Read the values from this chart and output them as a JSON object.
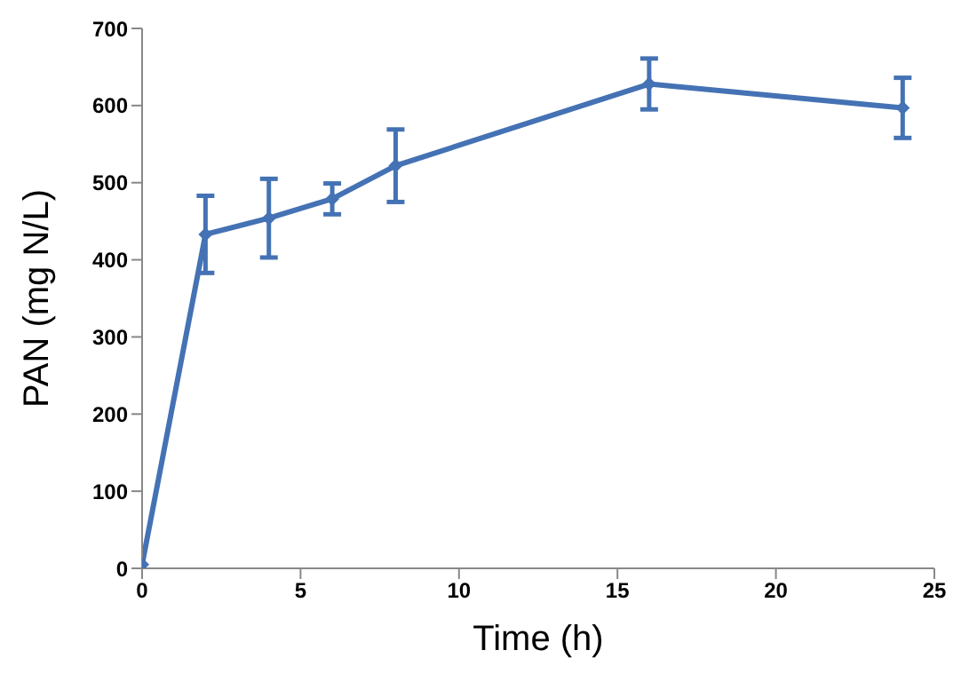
{
  "chart_data": {
    "type": "line",
    "xlabel": "Time (h)",
    "ylabel": "PAN (mg N/L)",
    "x": [
      0,
      2,
      4,
      6,
      8,
      16,
      24
    ],
    "series": [
      {
        "color": "#4472b4",
        "values": [
          5,
          433,
          454,
          479,
          522,
          628,
          597
        ],
        "errors": [
          null,
          50,
          51,
          20,
          47,
          33,
          39
        ]
      }
    ],
    "xlim": [
      0,
      25
    ],
    "xticks": [
      0,
      5,
      10,
      15,
      20,
      25
    ],
    "ylim": [
      0,
      700
    ],
    "yticks": [
      0,
      100,
      200,
      300,
      400,
      500,
      600,
      700
    ],
    "grid": false,
    "legend": false,
    "marker": "diamond",
    "line_style": "solid"
  }
}
